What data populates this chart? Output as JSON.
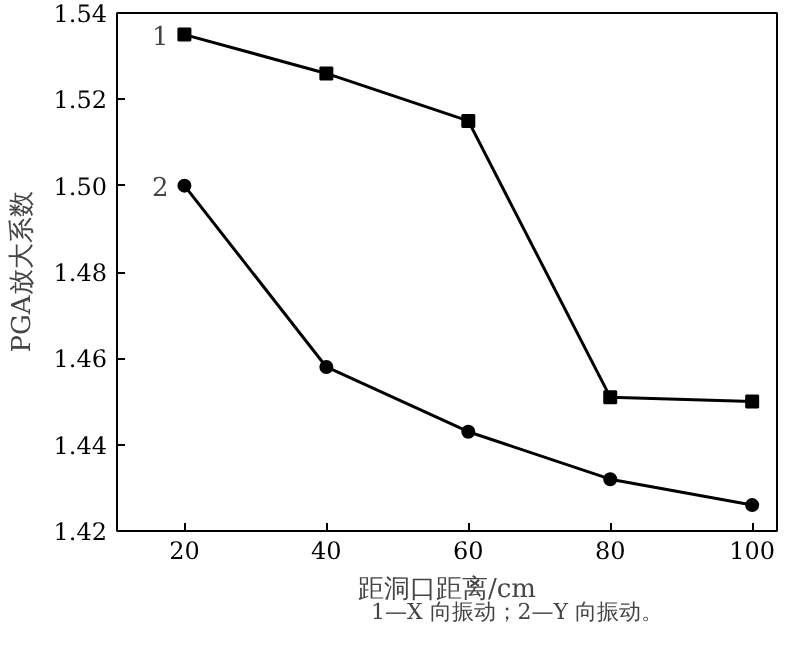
{
  "chart_data": {
    "type": "line",
    "xlabel": "距洞口距离/cm",
    "ylabel": "PGA放大系数",
    "x": [
      20,
      40,
      60,
      80,
      100
    ],
    "series": [
      {
        "name": "1",
        "color": "#000000",
        "marker": "square",
        "values": [
          1.535,
          1.526,
          1.515,
          1.451,
          1.45
        ]
      },
      {
        "name": "2",
        "color": "#000000",
        "marker": "circle",
        "values": [
          1.5,
          1.458,
          1.443,
          1.432,
          1.426
        ]
      }
    ],
    "xlim": [
      10.5,
      103.5
    ],
    "ylim": [
      1.42,
      1.54
    ],
    "xticks": [
      20,
      40,
      60,
      80,
      100
    ],
    "yticks": [
      {
        "value": 1.42,
        "label": "1.42"
      },
      {
        "value": 1.44,
        "label": "1.44"
      },
      {
        "value": 1.46,
        "label": "1.46"
      },
      {
        "value": 1.48,
        "label": "1.48"
      },
      {
        "value": 1.5,
        "label": "1.50"
      },
      {
        "value": 1.52,
        "label": "1.52"
      },
      {
        "value": 1.54,
        "label": "1.54"
      }
    ],
    "grid": false,
    "legend": "top left",
    "line_style": "solid",
    "annotations": [
      "1—X 向振动；2—Y 向振动。"
    ]
  }
}
